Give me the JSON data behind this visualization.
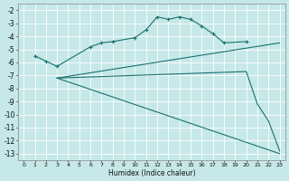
{
  "xlabel": "Humidex (Indice chaleur)",
  "background_color": "#c6e8e8",
  "grid_color": "#b0d8d8",
  "line_color": "#1a7070",
  "xlim": [
    -0.5,
    23.5
  ],
  "ylim": [
    -13.5,
    -1.5
  ],
  "yticks": [
    -2,
    -3,
    -4,
    -5,
    -6,
    -7,
    -8,
    -9,
    -10,
    -11,
    -12,
    -13
  ],
  "xticks": [
    0,
    1,
    2,
    3,
    4,
    5,
    6,
    7,
    8,
    9,
    10,
    11,
    12,
    13,
    14,
    15,
    16,
    17,
    18,
    19,
    20,
    21,
    22,
    23
  ],
  "lines": [
    {
      "x": [
        1,
        2,
        3,
        6,
        7,
        8,
        10,
        11,
        12,
        13,
        14,
        15,
        16,
        17,
        18,
        20
      ],
      "y": [
        -5.5,
        -5.9,
        -6.3,
        -4.8,
        -4.5,
        -4.4,
        -4.1,
        -3.5,
        -2.5,
        -2.7,
        -2.5,
        -2.7,
        -3.2,
        -3.8,
        -4.5,
        -4.4
      ],
      "marker": true
    },
    {
      "x": [
        3,
        23
      ],
      "y": [
        -7.2,
        -4.5
      ],
      "marker": false
    },
    {
      "x": [
        3,
        20,
        21,
        22,
        23
      ],
      "y": [
        -7.2,
        -6.7,
        -9.2,
        -10.5,
        -12.8
      ],
      "marker": false
    },
    {
      "x": [
        3,
        23
      ],
      "y": [
        -7.2,
        -13.0
      ],
      "marker": false
    }
  ]
}
